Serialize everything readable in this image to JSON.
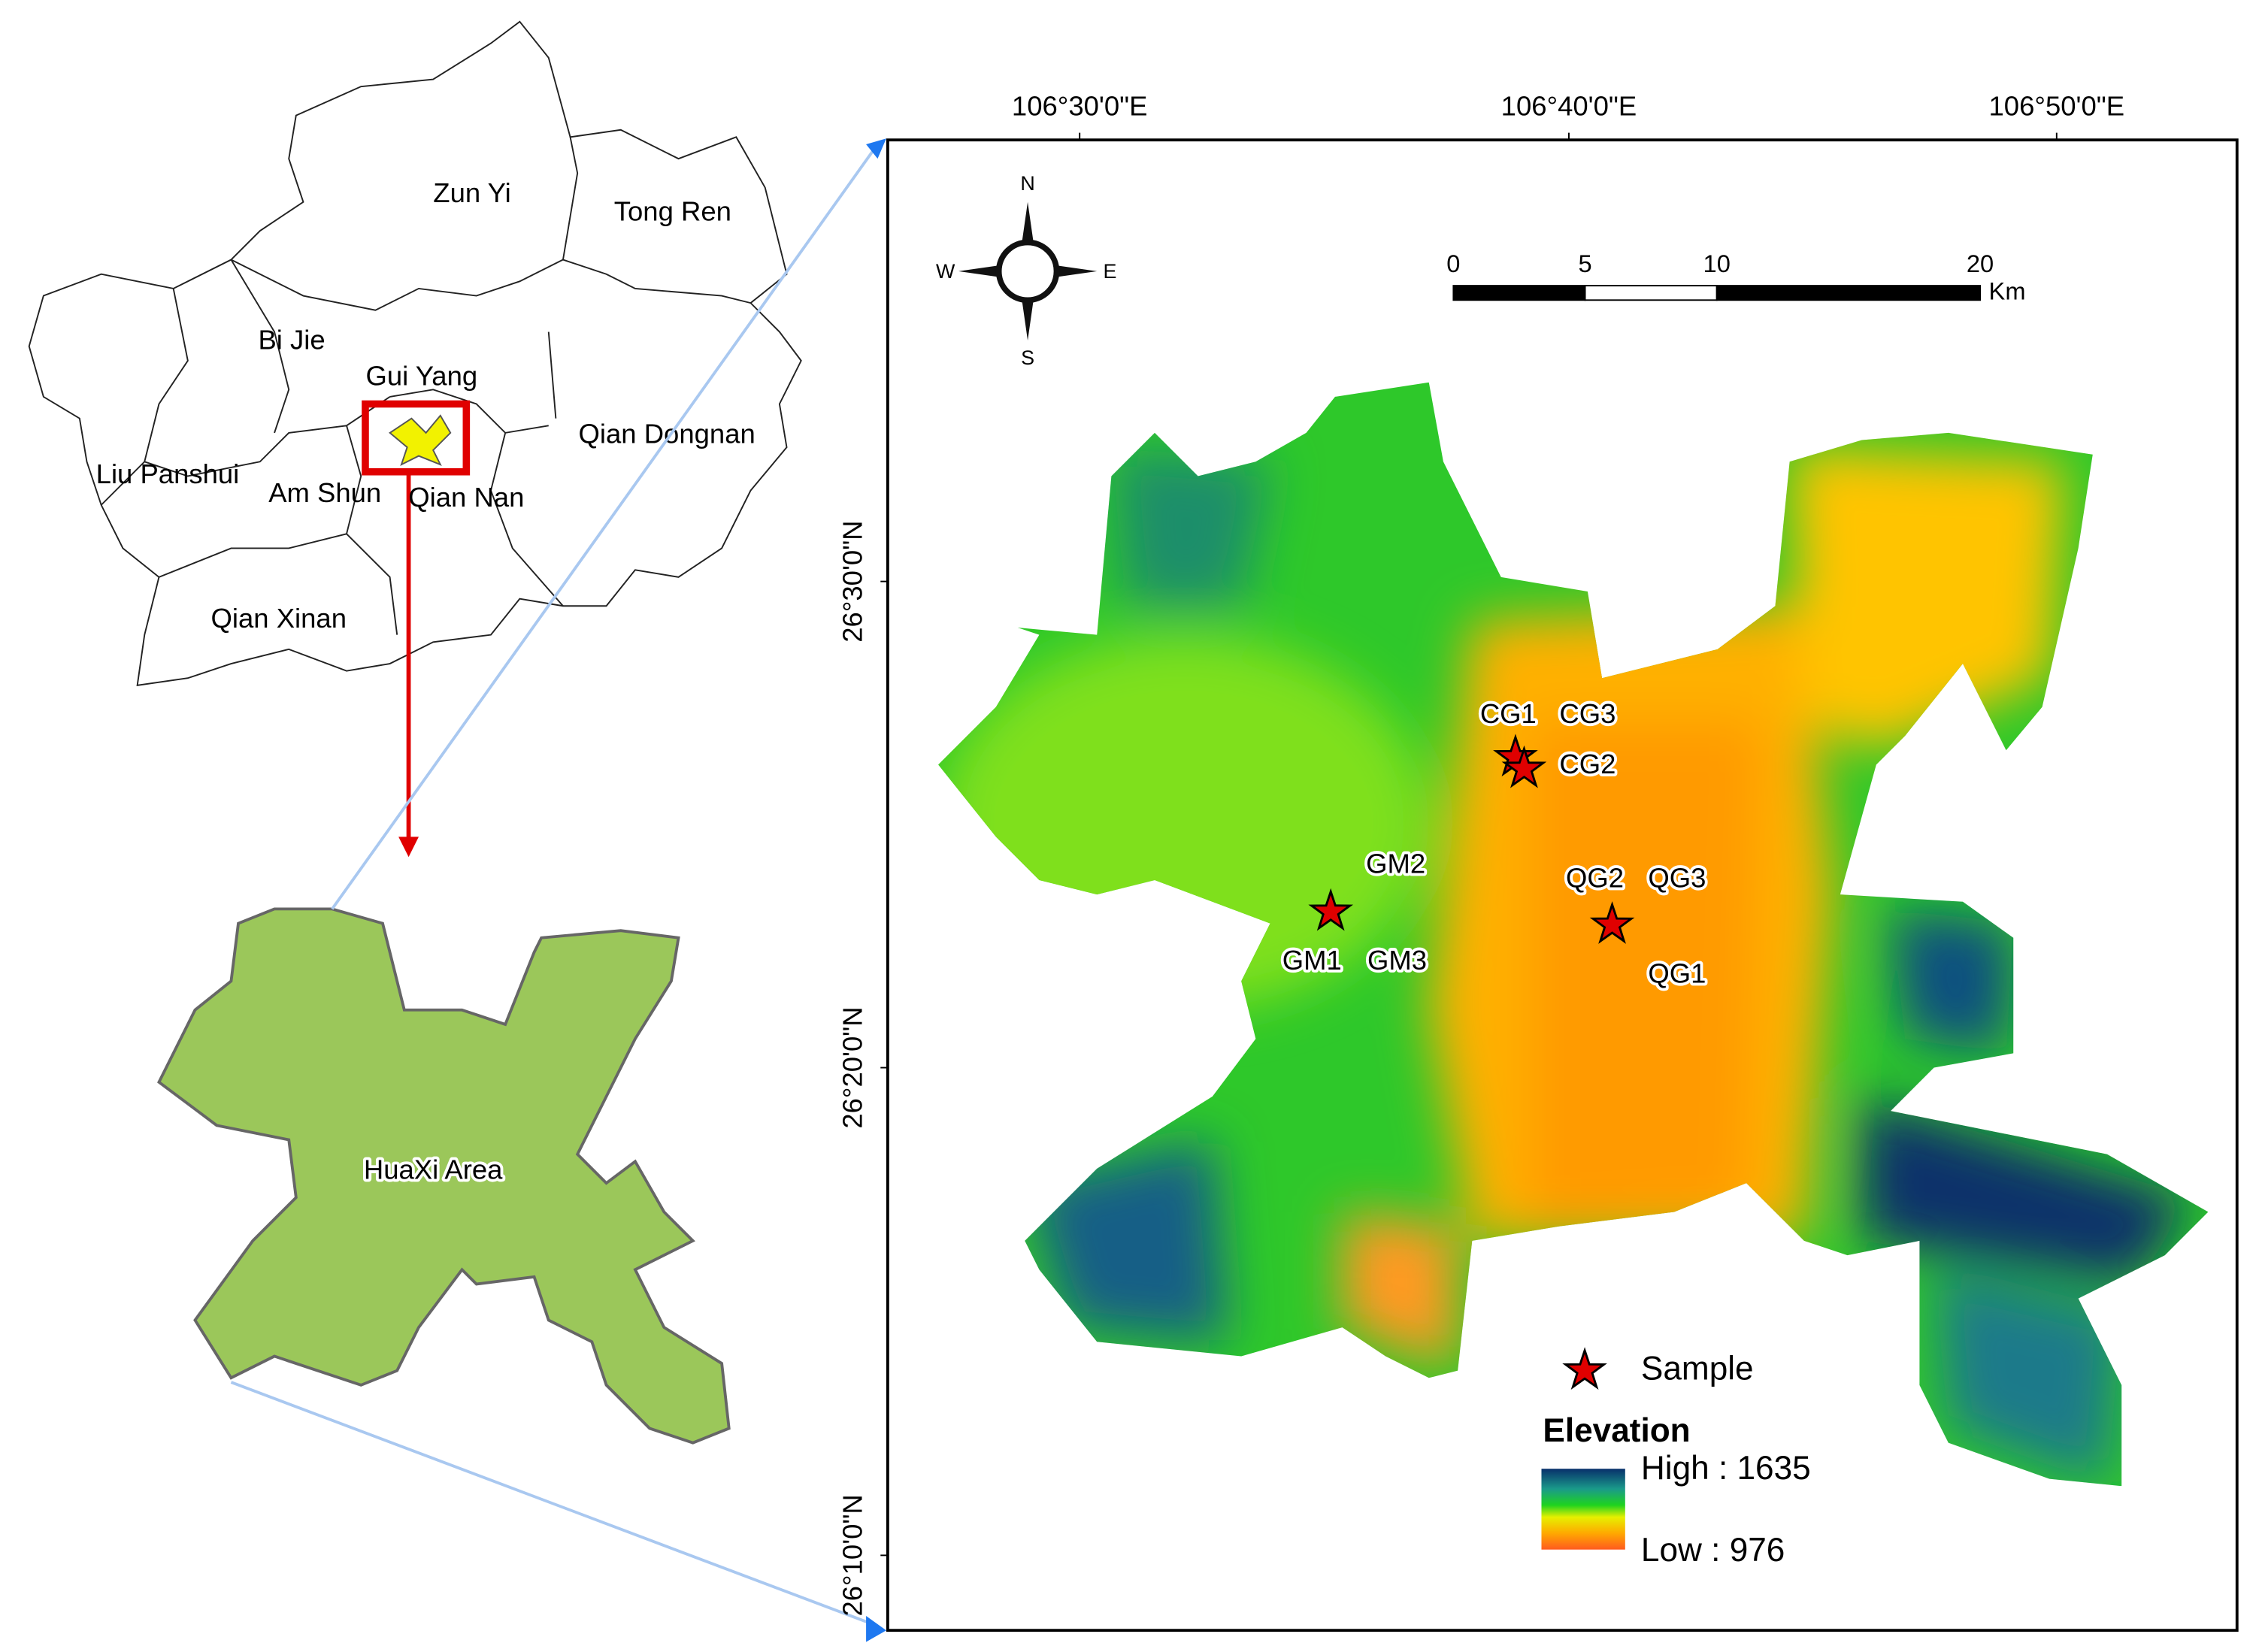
{
  "locator": {
    "regions": [
      "Zun Yi",
      "Tong Ren",
      "Bi Jie",
      "Gui Yang",
      "Qian Dongnan",
      "Liu Panshui",
      "Am Shun",
      "Qian Nan",
      "Qian Xinan"
    ]
  },
  "inset_label": "HuaXi Area",
  "map": {
    "longitude_labels": [
      "106°30'0\"E",
      "106°40'0\"E",
      "106°50'0\"E"
    ],
    "latitude_labels": [
      "26°30'0\"N",
      "26°20'0\"N",
      "26°10'0\"N"
    ],
    "compass": {
      "n": "N",
      "s": "S",
      "e": "E",
      "w": "W"
    },
    "scale_bar": {
      "ticks": [
        0,
        5,
        10,
        20
      ],
      "unit": "Km"
    },
    "sample_labels": [
      "CG1",
      "CG3",
      "CG2",
      "GM2",
      "GM1",
      "GM3",
      "QG2",
      "QG3",
      "QG1"
    ],
    "legend": {
      "sample": "Sample",
      "title": "Elevation",
      "high": "High : 1635",
      "low": "Low : 976"
    }
  }
}
